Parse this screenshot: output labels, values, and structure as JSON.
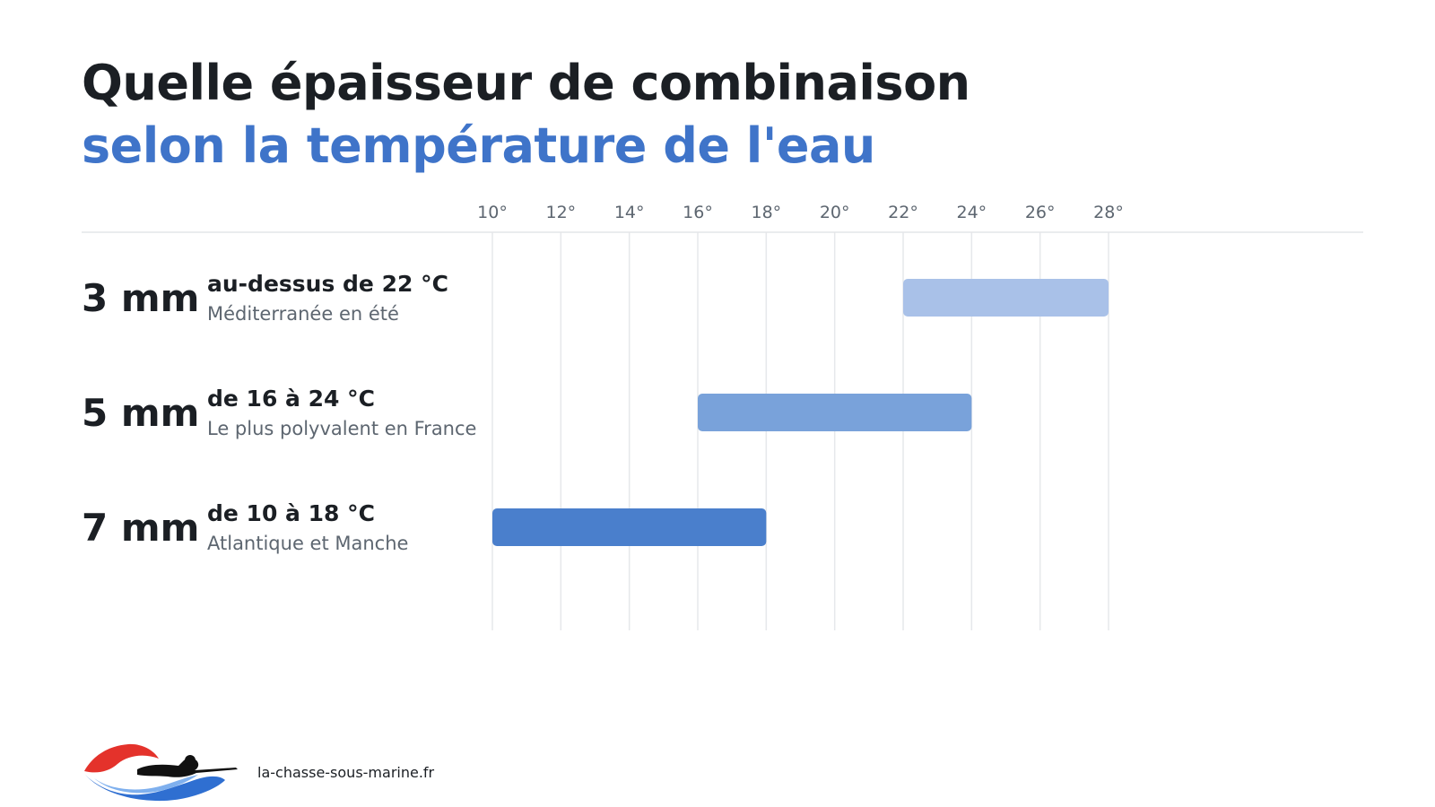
{
  "title": {
    "line1": "Quelle épaisseur de combinaison",
    "line2": "selon la température de l'eau"
  },
  "colors": {
    "accent": "#3f74c9",
    "text": "#1b1f24",
    "muted": "#5d6670",
    "grid": "#e6e8eb",
    "bar_3mm": "#a9c1e8",
    "bar_5mm": "#79a2da",
    "bar_7mm": "#4a7fcc"
  },
  "chart_data": {
    "type": "bar",
    "orientation": "horizontal-range",
    "xlabel": "",
    "ylabel": "",
    "x_unit": "°",
    "xlim": [
      10,
      28
    ],
    "ticks": [
      10,
      12,
      14,
      16,
      18,
      20,
      22,
      24,
      26,
      28
    ],
    "tick_labels": [
      "10°",
      "12°",
      "14°",
      "16°",
      "18°",
      "20°",
      "22°",
      "24°",
      "26°",
      "28°"
    ],
    "grid": true,
    "rows": [
      {
        "label": "3 mm",
        "range_text": "au-dessus de 22 °C",
        "description": "Méditerranée en été",
        "start": 22,
        "end": 28,
        "color": "#a9c1e8"
      },
      {
        "label": "5 mm",
        "range_text": "de 16 à 24 °C",
        "description": "Le plus polyvalent en France",
        "start": 16,
        "end": 24,
        "color": "#79a2da"
      },
      {
        "label": "7 mm",
        "range_text": "de 10 à 18 °C",
        "description": "Atlantique et Manche",
        "start": 10,
        "end": 18,
        "color": "#4a7fcc"
      }
    ]
  },
  "footer": {
    "site": "la-chasse-sous-marine.fr",
    "logo": "spearfisher-wave-logo"
  }
}
